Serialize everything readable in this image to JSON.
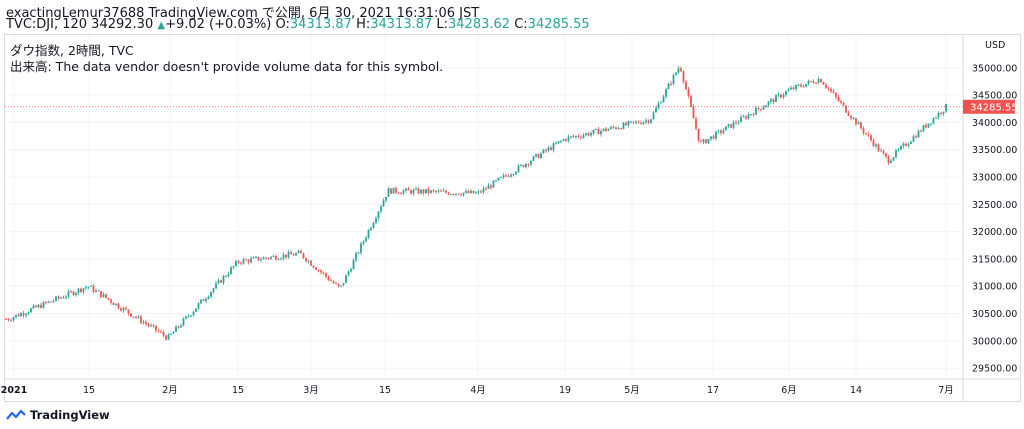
{
  "header": {
    "publisher": "exactingLemur37688 TradingView.com で公開, 6月 30, 2021 16:31:06 JST",
    "symbol_line_prefix": "TVC:DJI, 120 34292.30",
    "change_arrow": "▲",
    "change": "+9.02 (+0.03%)",
    "o_label": "O:",
    "o_value": "34313.87",
    "h_label": "H:",
    "h_value": "34313.87",
    "l_label": "L:",
    "l_value": "34283.62",
    "c_label": "C:",
    "c_value": "34285.55"
  },
  "legend": {
    "title": "ダウ指数, 2時間, TVC",
    "volume_note": "出来高: The data vendor doesn't provide volume data for this symbol."
  },
  "brand": {
    "name": "TradingView"
  },
  "colors": {
    "up": "#26a69a",
    "down": "#ef5350",
    "grid": "#f0f3fa",
    "last_price": "#ef5350"
  },
  "chart_data": {
    "type": "candlestick",
    "currency": "USD",
    "last_price": "34285.55",
    "ylim": [
      29300,
      35600
    ],
    "y_ticks": [
      "35000.00",
      "34500.00",
      "34000.00",
      "33500.00",
      "33000.00",
      "32500.00",
      "32000.00",
      "31500.00",
      "31000.00",
      "30500.00",
      "30000.00",
      "29500.00"
    ],
    "y_tick_values": [
      35000,
      34500,
      34000,
      33500,
      33000,
      32500,
      32000,
      31500,
      31000,
      30500,
      30000,
      29500
    ],
    "x_ticks": [
      "2021",
      "15",
      "2月",
      "15",
      "3月",
      "15",
      "4月",
      "19",
      "5月",
      "17",
      "6月",
      "14",
      "7月"
    ],
    "approx_close_path": [
      {
        "label": "2021",
        "close": 30400
      },
      {
        "label": "Jan mid",
        "close": 31000
      },
      {
        "label": "Feb start",
        "close": 30050
      },
      {
        "label": "Feb mid",
        "close": 31450
      },
      {
        "label": "Mar start",
        "close": 31600
      },
      {
        "label": "Mar early low",
        "close": 30950
      },
      {
        "label": "Mar mid",
        "close": 32750
      },
      {
        "label": "Apr start",
        "close": 32700
      },
      {
        "label": "Apr mid",
        "close": 33700
      },
      {
        "label": "May start",
        "close": 34050
      },
      {
        "label": "May peak",
        "close": 35050
      },
      {
        "label": "May low",
        "close": 33600
      },
      {
        "label": "Jun start",
        "close": 34600
      },
      {
        "label": "Jun high",
        "close": 34800
      },
      {
        "label": "Jun low",
        "close": 33300
      },
      {
        "label": "Jun end",
        "close": 34285.55
      }
    ]
  }
}
